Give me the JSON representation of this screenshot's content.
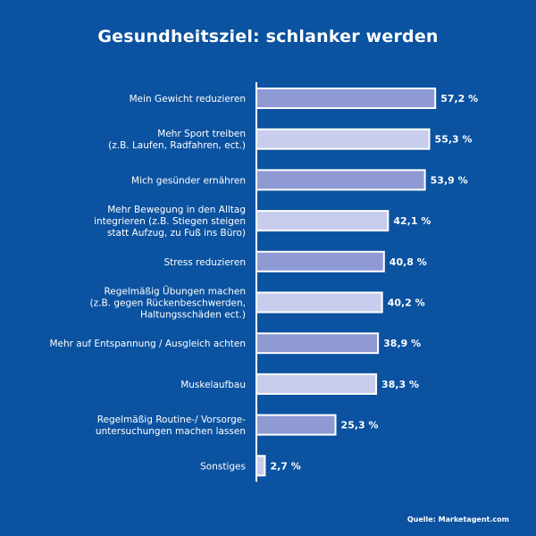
{
  "chart_data": {
    "type": "bar",
    "orientation": "horizontal",
    "title": "Gesundheitsziel: schlanker werden",
    "categories": [
      [
        "Mein Gewicht reduzieren"
      ],
      [
        "Mehr Sport treiben",
        "(z.B. Laufen, Radfahren, ect.)"
      ],
      [
        "Mich gesünder ernähren"
      ],
      [
        "Mehr Bewegung in den Alltag",
        "integrieren (z.B. Stiegen steigen",
        "statt Aufzug, zu Fuß ins Büro)"
      ],
      [
        "Stress reduzieren"
      ],
      [
        "Regelmäßig Übungen machen",
        "(z.B. gegen Rückenbeschwerden,",
        "Haltungsschäden ect.)"
      ],
      [
        "Mehr auf Entspannung / Ausgleich achten"
      ],
      [
        "Muskelaufbau"
      ],
      [
        "Regelmäßig Routine-/ Vorsorge-",
        "untersuchungen machen lassen"
      ],
      [
        "Sonstiges"
      ]
    ],
    "values": [
      57.2,
      55.3,
      53.9,
      42.1,
      40.8,
      40.2,
      38.9,
      38.3,
      25.3,
      2.7
    ],
    "value_labels": [
      "57,2 %",
      "55,3 %",
      "53,9 %",
      "42,1 %",
      "40,8 %",
      "40,2 %",
      "38,9 %",
      "38,3 %",
      "25,3 %",
      "2,7 %"
    ],
    "xlim": [
      0,
      60
    ],
    "unit": "%",
    "grid": false,
    "legend": "none"
  },
  "source": "Quelle: Marketagent.com",
  "colors": {
    "background": "#0b52a0",
    "bar_light": "#c9cded",
    "bar_dark": "#8f9ad4",
    "bar_stroke": "#ffffff",
    "text": "#ffffff"
  }
}
